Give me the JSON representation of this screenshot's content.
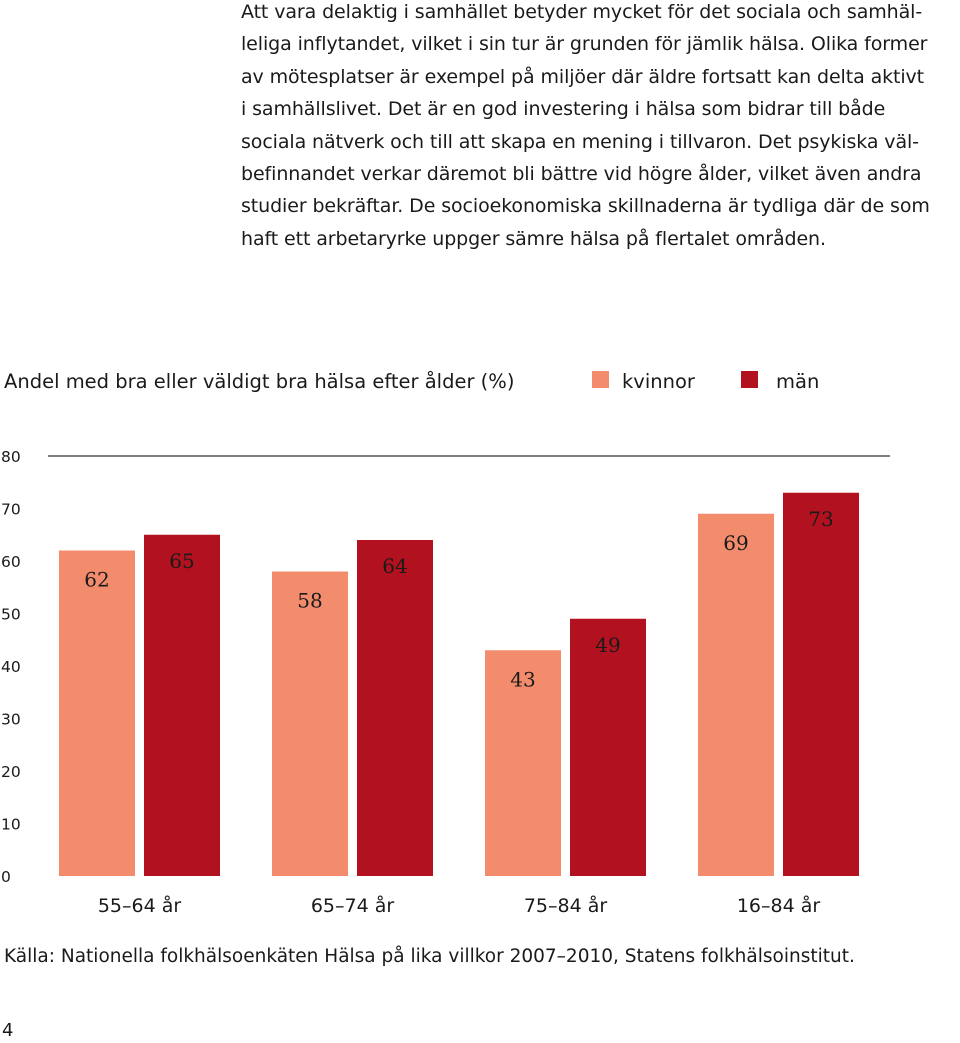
{
  "paragraph": {
    "lines": [
      "Att vara delaktig i samhället betyder mycket för det sociala och samhäl-",
      "leliga inflytandet, vilket i sin tur är grunden för jämlik hälsa. Olika former",
      "av mötesplatser är exempel på miljöer där äldre fortsatt kan delta aktivt",
      "i samhällslivet. Det är en god investering i hälsa som bidrar till både",
      "sociala nätverk och till att skapa en mening i tillvaron. Det psykiska väl-",
      "befinnandet verkar däremot bli bättre vid högre ålder, vilket även andra",
      "studier bekräftar. De socioekonomiska skillnaderna är tydliga där de som",
      "haft ett arbetaryrke uppger sämre hälsa på flertalet områden."
    ]
  },
  "chart_data": {
    "type": "bar",
    "title": "Andel med bra eller väldigt bra hälsa efter ålder (%)",
    "categories": [
      "55–64 år",
      "65–74 år",
      "75–84 år",
      "16–84 år"
    ],
    "series": [
      {
        "name": "kvinnor",
        "color": "#f28c6c",
        "values": [
          62,
          58,
          43,
          69
        ]
      },
      {
        "name": "män",
        "color": "#b2121f",
        "values": [
          65,
          64,
          49,
          73
        ]
      }
    ],
    "ylim": [
      0,
      80
    ],
    "yticks": [
      0,
      10,
      20,
      30,
      40,
      50,
      60,
      70,
      80
    ],
    "xlabel": "",
    "ylabel": "",
    "grid": "top line only",
    "legend": "top-right",
    "source": "Källa: Nationella folkhälsoenkäten Hälsa på lika villkor 2007–2010, Statens folkhälsoinstitut."
  },
  "page_number": "4"
}
